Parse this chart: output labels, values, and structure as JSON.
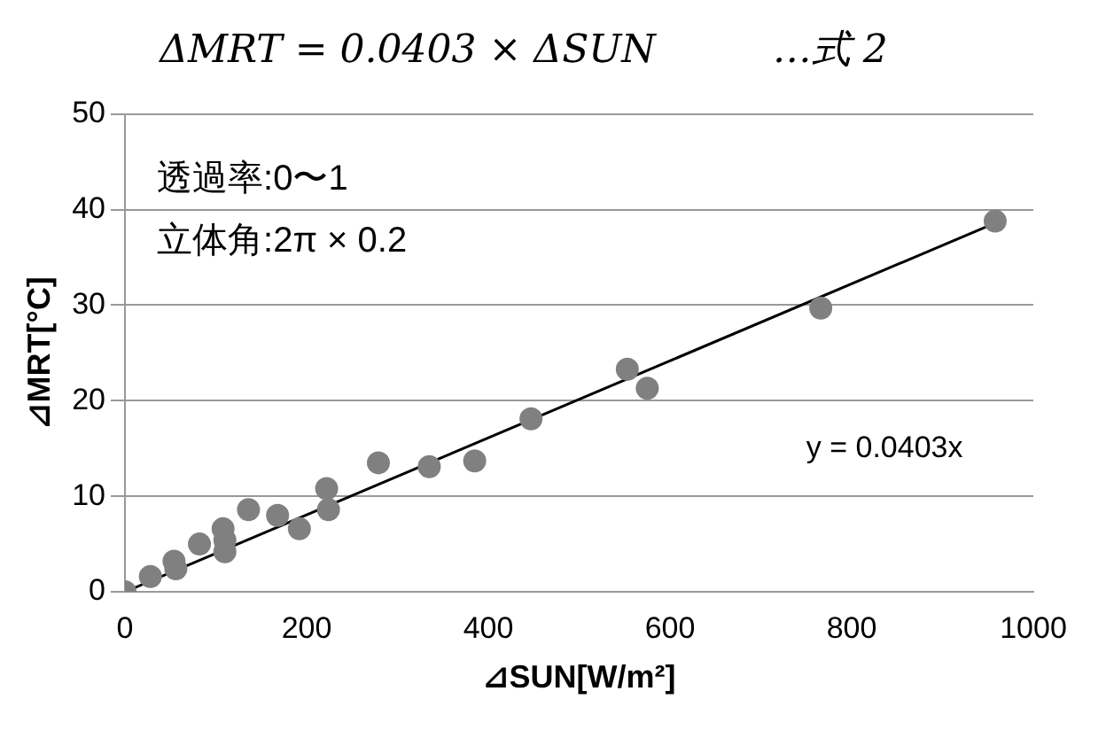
{
  "chart_data": {
    "type": "scatter",
    "title": "ΔMRT = 0.0403 × ΔSUN　　　…式 2",
    "xlabel": "⊿SUN[W/m²]",
    "ylabel": "⊿MRT[°C]",
    "xlim": [
      0,
      1000
    ],
    "xticks": [
      0,
      200,
      400,
      600,
      800,
      1000
    ],
    "ylim": [
      0,
      50
    ],
    "yticks": [
      0,
      10,
      20,
      30,
      40,
      50
    ],
    "grid": "y",
    "legend": false,
    "annotations": [
      "透過率:0〜1",
      "立体角:2π × 0.2",
      "y = 0.0403x"
    ],
    "series": [
      {
        "marker": "circle",
        "color": "#808080",
        "x": [
          0,
          28,
          54,
          56,
          82,
          108,
          110,
          110,
          136,
          168,
          192,
          222,
          224,
          279,
          335,
          385,
          447,
          553,
          575,
          766,
          958
        ],
        "values": [
          0,
          1.6,
          3.2,
          2.4,
          5,
          6.6,
          5.4,
          4.2,
          8.6,
          8,
          6.6,
          10.8,
          8.6,
          13.5,
          13.1,
          13.7,
          18.1,
          23.3,
          21.3,
          29.7,
          38.8
        ]
      },
      {
        "type": "line",
        "marker": "none",
        "color": "#000000",
        "x": [
          0,
          958
        ],
        "values": [
          0,
          38.6
        ]
      }
    ]
  }
}
